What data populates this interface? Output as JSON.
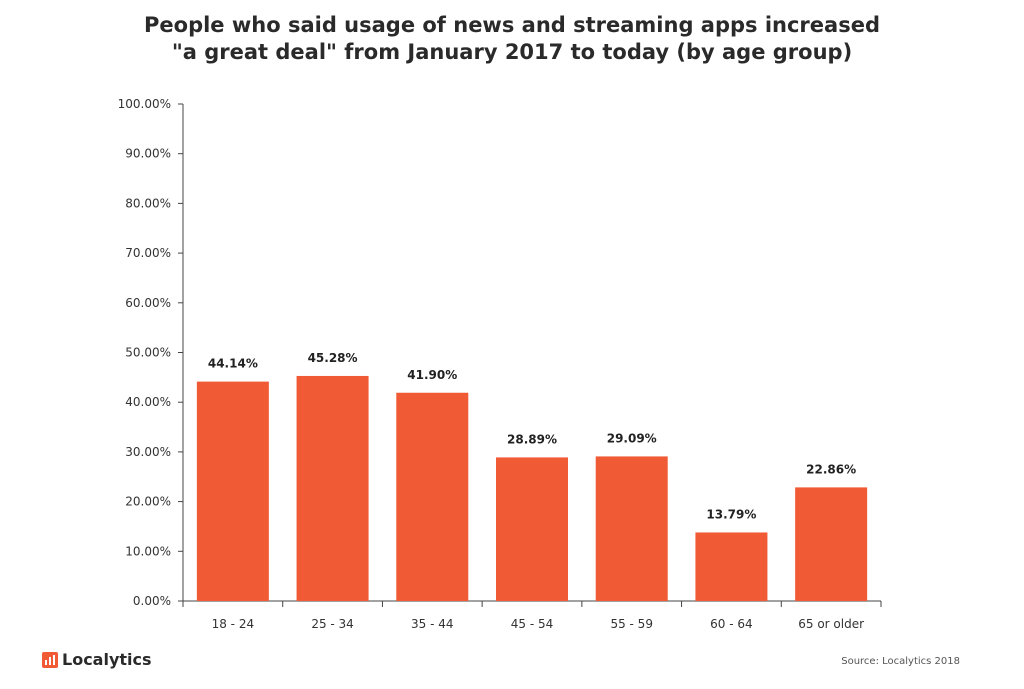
{
  "chart_data": {
    "type": "bar",
    "title": [
      "People who said usage of news and streaming apps increased",
      "\"a great deal\" from January 2017 to today (by age group)"
    ],
    "categories": [
      "18 - 24",
      "25 - 34",
      "35 - 44",
      "45 - 54",
      "55 - 59",
      "60 - 64",
      "65 or older"
    ],
    "values": [
      44.14,
      45.28,
      41.9,
      28.89,
      29.09,
      13.79,
      22.86
    ],
    "value_labels": [
      "44.14%",
      "45.28%",
      "41.90%",
      "28.89%",
      "29.09%",
      "13.79%",
      "22.86%"
    ],
    "y_ticks": [
      "0.00%",
      "10.00%",
      "20.00%",
      "30.00%",
      "40.00%",
      "50.00%",
      "60.00%",
      "70.00%",
      "80.00%",
      "90.00%",
      "100.00%"
    ],
    "ylim": [
      0,
      100
    ],
    "xlabel": "",
    "ylabel": "",
    "grid": false,
    "bar_color": "#f05a35"
  },
  "footer": {
    "brand": "Localytics",
    "source": "Source: Localytics 2018"
  }
}
